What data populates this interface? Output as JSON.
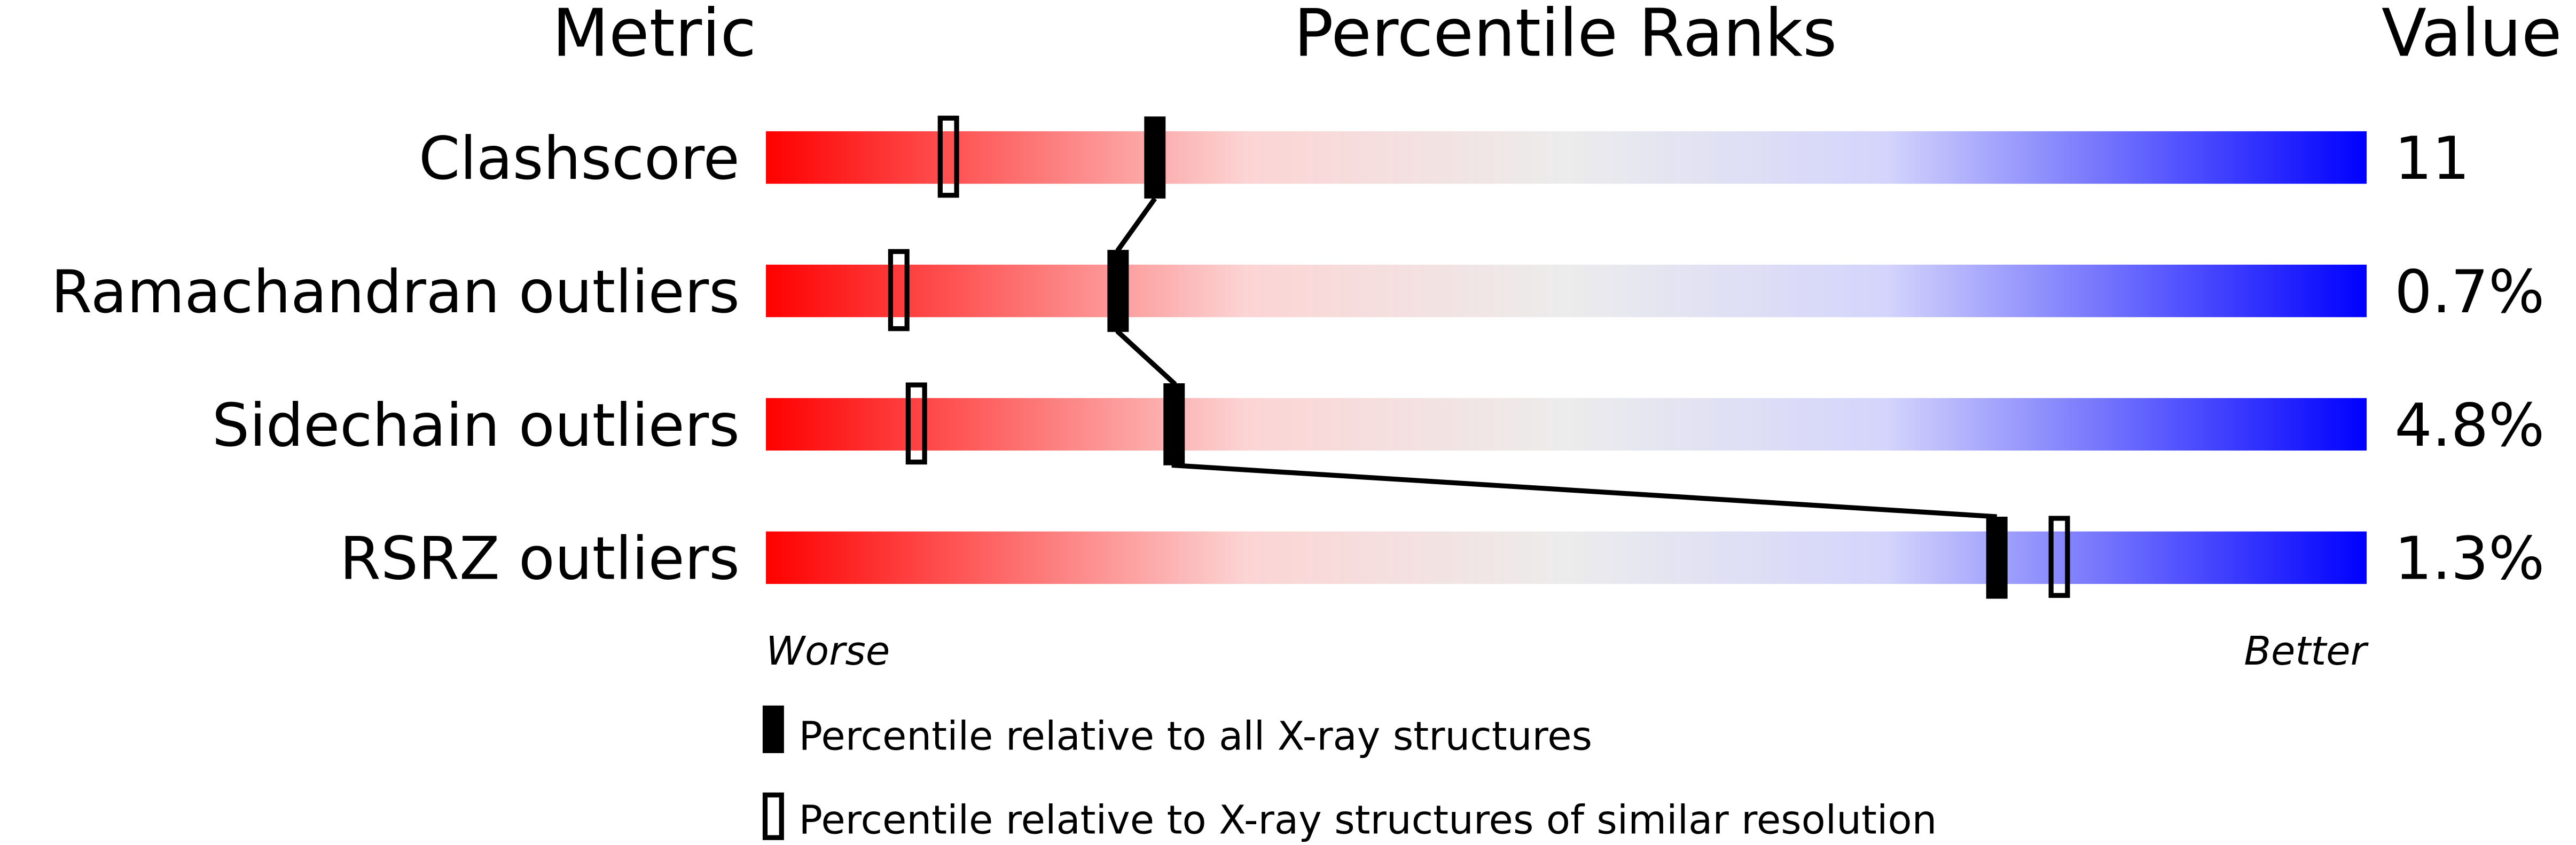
{
  "chart_data": {
    "type": "percentile-bar",
    "headers": {
      "metric": "Metric",
      "ranks": "Percentile Ranks",
      "value": "Value"
    },
    "xlim": [
      0,
      100
    ],
    "gradient": [
      "#ff0000",
      "#eeeeee",
      "#0000ff"
    ],
    "rows": [
      {
        "metric": "Clashscore",
        "value": "11",
        "percentile_all": 24.3,
        "percentile_similar": 11.4
      },
      {
        "metric": "Ramachandran outliers",
        "value": "0.7%",
        "percentile_all": 22.0,
        "percentile_similar": 8.3
      },
      {
        "metric": "Sidechain outliers",
        "value": "4.8%",
        "percentile_all": 25.5,
        "percentile_similar": 9.4
      },
      {
        "metric": "RSRZ outliers",
        "value": "1.3%",
        "percentile_all": 76.9,
        "percentile_similar": 80.8
      }
    ],
    "axis_left_label": "Worse",
    "axis_right_label": "Better",
    "legend": [
      {
        "marker": "filled",
        "label": "Percentile relative to all X-ray structures"
      },
      {
        "marker": "open",
        "label": "Percentile relative to X-ray structures of similar resolution"
      }
    ]
  }
}
